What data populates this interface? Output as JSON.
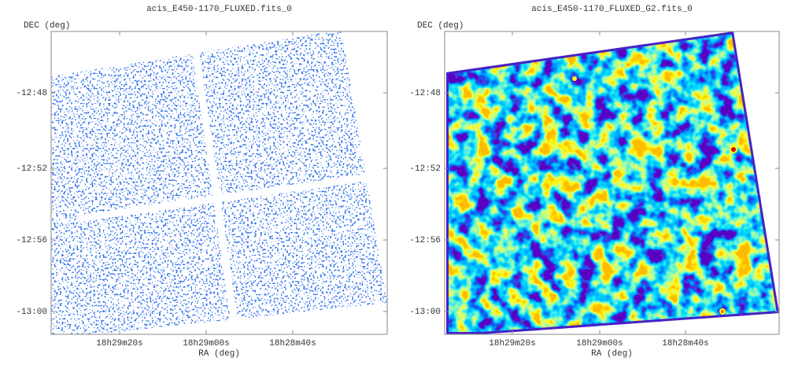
{
  "panels": [
    {
      "title": "acis_E450-1170_FLUXED.fits_0",
      "ylabel": "DEC (deg)",
      "xlabel": "RA (deg)",
      "yticks": [
        "-12:48",
        "-12:52",
        "-12:56",
        "-13:00"
      ],
      "xticks": [
        "18h29m20s",
        "18h29m00s",
        "18h28m40s"
      ]
    },
    {
      "title": "acis_E450-1170_FLUXED_G2.fits_0",
      "ylabel": "DEC (deg)",
      "xlabel": "RA (deg)",
      "yticks": [
        "-12:48",
        "-12:52",
        "-12:56",
        "-13:00"
      ],
      "xticks": [
        "18h29m20s",
        "18h29m00s",
        "18h28m40s"
      ]
    }
  ]
}
